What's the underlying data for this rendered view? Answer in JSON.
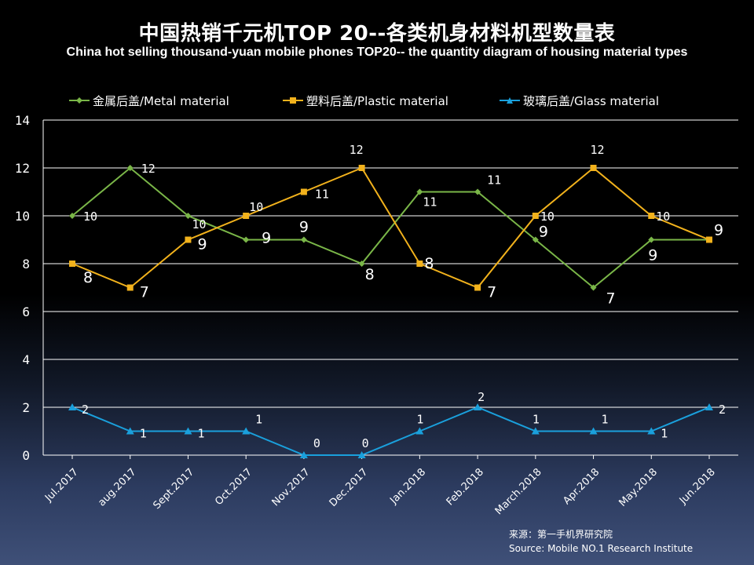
{
  "title": "中国热销千元机TOP 20--各类机身材料机型数量表",
  "subtitle": "China hot selling thousand-yuan mobile phones TOP20-- the quantity diagram of housing material types",
  "source": {
    "line1": "来源：第一手机界研究院",
    "line2": "Source: Mobile NO.1 Research Institute"
  },
  "chart_data": {
    "type": "line",
    "categories": [
      "Jul.2017",
      "aug.2017",
      "Sept.2017",
      "Oct.2017",
      "Nov.2017",
      "Dec.2017",
      "Jan.2018",
      "Feb.2018",
      "March.2018",
      "Apr.2018",
      "May.2018",
      "Jun.2018"
    ],
    "ylim": [
      0,
      14
    ],
    "yticks": [
      0,
      2,
      4,
      6,
      8,
      10,
      12,
      14
    ],
    "grid": true,
    "legend_position": "top",
    "series": [
      {
        "name": "金属后盖/Metal material",
        "color": "#7ab648",
        "marker": "diamond",
        "values": [
          10,
          12,
          10,
          9,
          9,
          8,
          11,
          11,
          9,
          7,
          9,
          9
        ]
      },
      {
        "name": "塑料后盖/Plastic material",
        "color": "#f2b21c",
        "marker": "square",
        "values": [
          8,
          7,
          9,
          10,
          11,
          12,
          8,
          7,
          10,
          12,
          10,
          9
        ]
      },
      {
        "name": "玻璃后盖/Glass material",
        "color": "#1aa0dc",
        "marker": "triangle",
        "values": [
          2,
          1,
          1,
          1,
          0,
          0,
          1,
          2,
          1,
          1,
          1,
          2
        ]
      }
    ]
  }
}
